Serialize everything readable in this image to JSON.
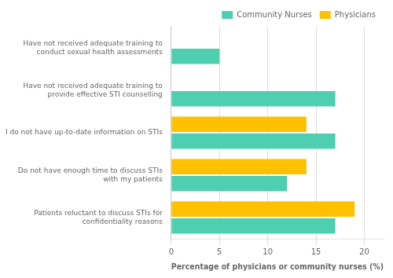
{
  "chart_data": {
    "type": "bar",
    "orientation": "horizontal",
    "categories": [
      "Patients reluctant to discuss STIs for\nconfidentiality reasons",
      "Do not have enough time to discuss STIs\nwith my patients",
      "I do not have up-to-date information on STIs",
      "Have not received adequate training to\nprovide effective STI counselling",
      "Have not received adequate training to\nconduct sexual health assessments"
    ],
    "series": [
      {
        "name": "Community Nurses",
        "color": "#4ecfb0",
        "values": [
          17,
          12,
          17,
          17,
          5
        ]
      },
      {
        "name": "Physicians",
        "color": "#ffc000",
        "values": [
          19,
          14,
          14,
          0,
          0
        ]
      }
    ],
    "xlabel": "Percentage of physicians or community nurses (%)",
    "xlim": [
      0,
      22
    ],
    "xticks": [
      0,
      5,
      10,
      15,
      20
    ],
    "grid": true,
    "legend": "upper right"
  }
}
